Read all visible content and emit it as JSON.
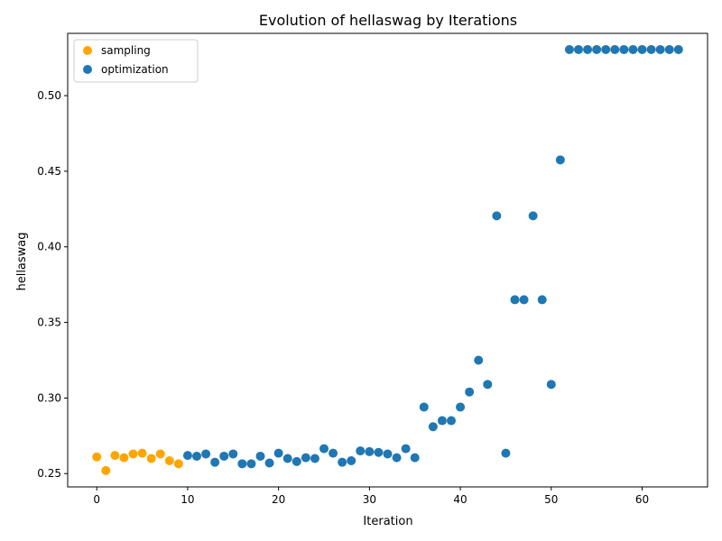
{
  "chart_data": {
    "type": "scatter",
    "title": "Evolution of hellaswag by Iterations",
    "xlabel": "Iteration",
    "ylabel": "hellaswag",
    "xlim": [
      -3.2,
      67.2
    ],
    "ylim": [
      0.2412,
      0.5412
    ],
    "xticks": [
      0,
      10,
      20,
      30,
      40,
      50,
      60
    ],
    "yticks": [
      0.25,
      0.3,
      0.35,
      0.4,
      0.45,
      0.5
    ],
    "grid": false,
    "legend_position": "upper-left",
    "series": [
      {
        "name": "sampling",
        "color": "#ffa500",
        "points": [
          [
            0,
            0.261
          ],
          [
            1,
            0.252
          ],
          [
            2,
            0.262
          ],
          [
            3,
            0.2605
          ],
          [
            4,
            0.263
          ],
          [
            5,
            0.2635
          ],
          [
            6,
            0.26
          ],
          [
            7,
            0.263
          ],
          [
            8,
            0.2585
          ],
          [
            9,
            0.2565
          ]
        ]
      },
      {
        "name": "optimization",
        "color": "#1f77b4",
        "points": [
          [
            10,
            0.262
          ],
          [
            11,
            0.2615
          ],
          [
            12,
            0.263
          ],
          [
            13,
            0.2575
          ],
          [
            14,
            0.2615
          ],
          [
            15,
            0.263
          ],
          [
            16,
            0.2565
          ],
          [
            17,
            0.2565
          ],
          [
            18,
            0.2615
          ],
          [
            19,
            0.257
          ],
          [
            20,
            0.2635
          ],
          [
            21,
            0.26
          ],
          [
            22,
            0.258
          ],
          [
            23,
            0.2605
          ],
          [
            24,
            0.26
          ],
          [
            25,
            0.2665
          ],
          [
            26,
            0.2635
          ],
          [
            27,
            0.2575
          ],
          [
            28,
            0.2585
          ],
          [
            29,
            0.265
          ],
          [
            30,
            0.2645
          ],
          [
            31,
            0.264
          ],
          [
            32,
            0.263
          ],
          [
            33,
            0.2605
          ],
          [
            34,
            0.2665
          ],
          [
            35,
            0.2605
          ],
          [
            36,
            0.294
          ],
          [
            37,
            0.281
          ],
          [
            38,
            0.285
          ],
          [
            39,
            0.285
          ],
          [
            40,
            0.294
          ],
          [
            41,
            0.304
          ],
          [
            42,
            0.325
          ],
          [
            43,
            0.309
          ],
          [
            44,
            0.4205
          ],
          [
            45,
            0.2635
          ],
          [
            46,
            0.365
          ],
          [
            47,
            0.365
          ],
          [
            48,
            0.4205
          ],
          [
            49,
            0.365
          ],
          [
            50,
            0.309
          ],
          [
            51,
            0.4575
          ],
          [
            52,
            0.5305
          ],
          [
            53,
            0.5305
          ],
          [
            54,
            0.5305
          ],
          [
            55,
            0.5305
          ],
          [
            56,
            0.5305
          ],
          [
            57,
            0.5305
          ],
          [
            58,
            0.5305
          ],
          [
            59,
            0.5305
          ],
          [
            60,
            0.5305
          ],
          [
            61,
            0.5305
          ],
          [
            62,
            0.5305
          ],
          [
            63,
            0.5305
          ],
          [
            64,
            0.5305
          ]
        ]
      }
    ]
  }
}
